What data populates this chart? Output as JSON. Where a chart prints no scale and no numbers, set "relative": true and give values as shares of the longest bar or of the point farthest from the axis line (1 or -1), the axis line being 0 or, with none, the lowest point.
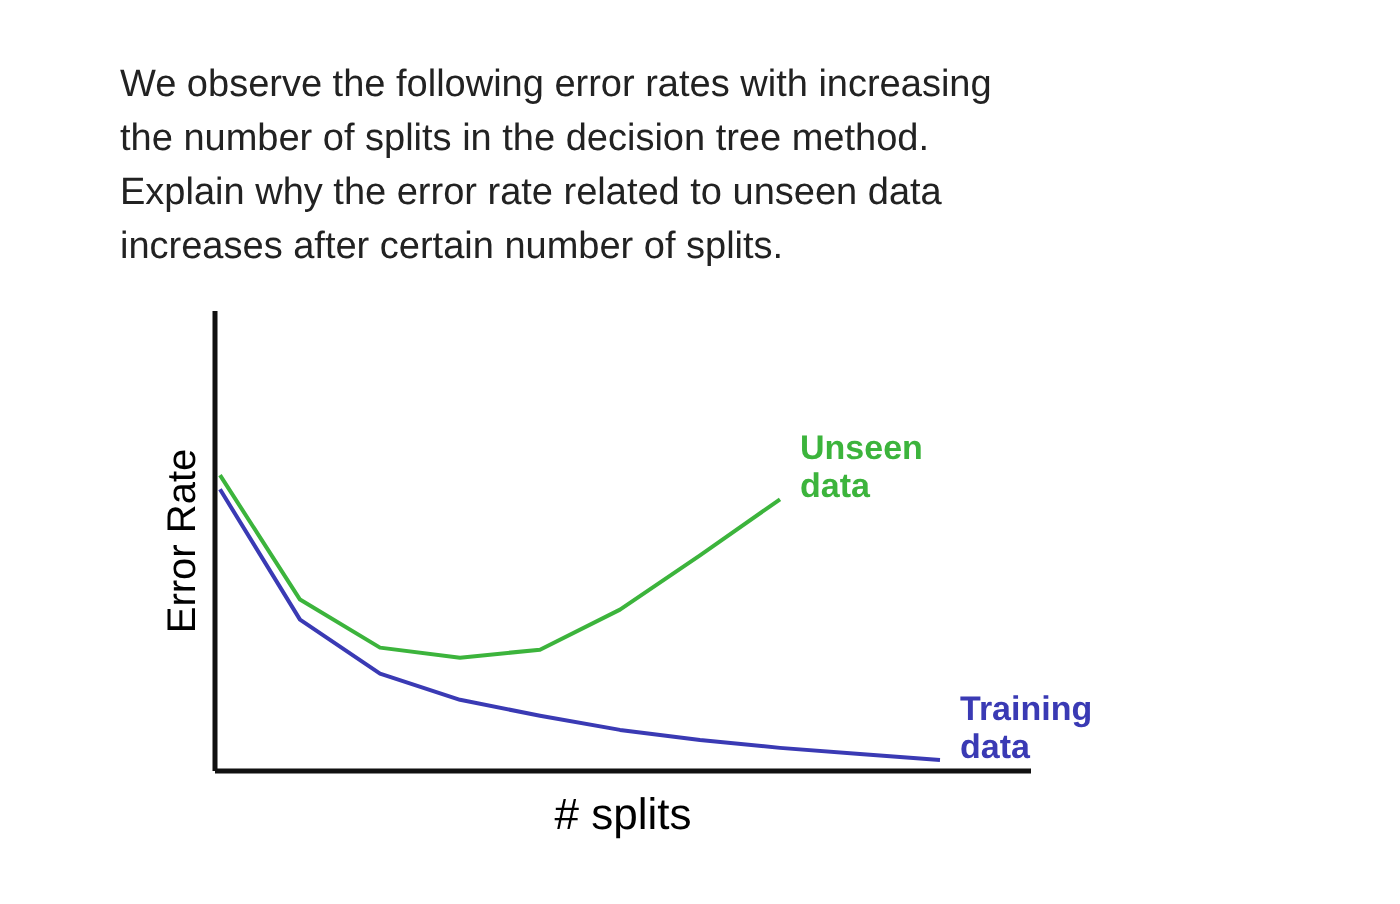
{
  "chart_data": {
    "type": "line",
    "title": "We observe the following error rates with increasing the number of splits in the decision tree method. Explain why the error rate related to unseen data increases after certain number of splits.",
    "xlabel": "# splits",
    "ylabel": "Error Rate",
    "relative": true,
    "grid": false,
    "marker": "none",
    "line_style": "solid",
    "categories": [
      null,
      null,
      null,
      null,
      null,
      null,
      null,
      null,
      null,
      null
    ],
    "series": [
      {
        "name": "Unseen data",
        "color": "#3cb43c",
        "values": [
          1.0,
          0.578,
          0.415,
          0.381,
          0.408,
          0.544,
          0.728,
          0.918,
          null,
          null
        ]
      },
      {
        "name": "Training data",
        "color": "#3a3ab4",
        "values": [
          0.952,
          0.51,
          0.327,
          0.238,
          0.184,
          0.136,
          0.102,
          0.075,
          0.054,
          0.034
        ]
      }
    ]
  }
}
